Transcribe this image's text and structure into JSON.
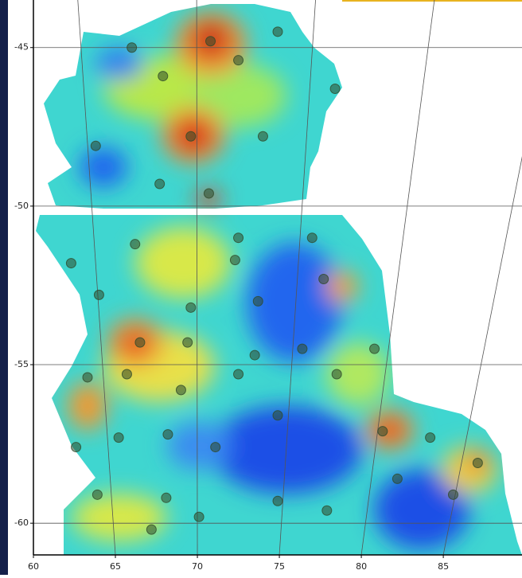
{
  "chart_data": {
    "type": "scatter",
    "xlim": [
      60,
      89.8
    ],
    "ylim": [
      -61,
      -43.5
    ],
    "xticks": [
      60,
      65,
      70,
      75,
      80,
      85
    ],
    "yticks": [
      -45,
      -50,
      -55,
      -60
    ],
    "grid": true,
    "color": "#2f4a2a",
    "x": [
      70.8,
      72.5,
      67.9,
      66.0,
      74.9,
      78.4,
      69.6,
      74.0,
      63.8,
      67.7,
      70.7,
      62.3,
      66.2,
      72.5,
      72.3,
      77.0,
      64.0,
      69.6,
      73.7,
      77.7,
      66.5,
      69.4,
      73.5,
      76.4,
      80.8,
      63.3,
      65.7,
      69.0,
      72.5,
      78.5,
      62.6,
      65.2,
      68.2,
      71.1,
      74.9,
      81.3,
      84.2,
      63.9,
      68.1,
      70.1,
      74.9,
      77.9,
      82.2,
      85.6,
      67.2,
      87.1
    ],
    "y": [
      -44.8,
      -45.4,
      -45.9,
      -45.0,
      -44.5,
      -46.3,
      -47.8,
      -47.8,
      -48.1,
      -49.3,
      -49.6,
      -51.8,
      -51.2,
      -51.0,
      -51.7,
      -51.0,
      -52.8,
      -53.2,
      -53.0,
      -52.3,
      -54.3,
      -54.3,
      -54.7,
      -54.5,
      -54.5,
      -55.4,
      -55.3,
      -55.8,
      -55.3,
      -55.3,
      -57.6,
      -57.3,
      -57.2,
      -57.6,
      -56.6,
      -57.1,
      -57.3,
      -59.1,
      -59.2,
      -59.8,
      -59.3,
      -59.6,
      -58.6,
      -59.1,
      -60.2,
      -58.1
    ]
  }
}
